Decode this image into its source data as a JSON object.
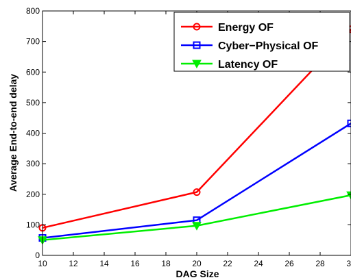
{
  "chart_data": {
    "type": "line",
    "title": "",
    "xlabel": "DAG Size",
    "ylabel": "Average End-to-end delay",
    "x": [
      10,
      20,
      30
    ],
    "xlim": [
      10,
      30
    ],
    "ylim": [
      0,
      800
    ],
    "xticks": [
      "10",
      "12",
      "14",
      "16",
      "18",
      "20",
      "22",
      "24",
      "26",
      "28",
      "30"
    ],
    "yticks": [
      "0",
      "100",
      "200",
      "300",
      "400",
      "500",
      "600",
      "700",
      "800"
    ],
    "grid": false,
    "legend_position": "top-right",
    "series": [
      {
        "name": "Energy OF",
        "color": "#ff0000",
        "marker": "circle",
        "values": [
          90,
          207,
          740
        ]
      },
      {
        "name": "Cyber−Physical OF",
        "color": "#0000ff",
        "marker": "square",
        "values": [
          57,
          115,
          432
        ]
      },
      {
        "name": "Latency OF",
        "color": "#00ee00",
        "marker": "triangle-down",
        "values": [
          50,
          97,
          197
        ]
      }
    ]
  }
}
